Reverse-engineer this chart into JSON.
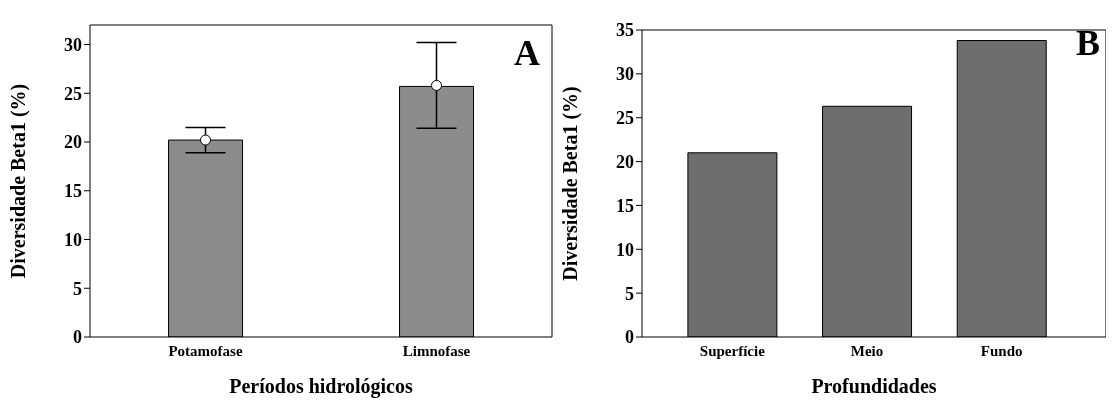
{
  "chart_data": [
    {
      "type": "bar",
      "xlabel": "Períodos hidrológicos",
      "ylabel": "Diversidade Beta1 (%)",
      "annotations": [
        "A"
      ],
      "categories": [
        "Potamofase",
        "Limnofase"
      ],
      "series": [
        {
          "color": "#8c8c8c",
          "values": [
            20.2,
            25.7
          ]
        },
        {
          "type": "scatter",
          "color": "#ffffff",
          "marker": "circle",
          "x": [
            "Potamofase",
            "Limnofase"
          ],
          "values": [
            20.2,
            25.8
          ],
          "errors": [
            [
              18.9,
              21.5
            ],
            [
              21.4,
              30.2
            ]
          ]
        }
      ],
      "ylim": [
        0,
        32
      ],
      "yticks": [
        0,
        5,
        10,
        15,
        20,
        25,
        30
      ],
      "grid": false,
      "legend": false
    },
    {
      "type": "bar",
      "xlabel": "Profundidades",
      "ylabel": "Diversidade Beta1 (%)",
      "annotations": [
        "B"
      ],
      "categories": [
        "Superfície",
        "Meio",
        "Fundo"
      ],
      "series": [
        {
          "color": "#6e6e6e",
          "values": [
            21.0,
            26.3,
            33.8
          ]
        }
      ],
      "ylim": [
        0,
        35
      ],
      "yticks": [
        0,
        5,
        10,
        15,
        20,
        25,
        30,
        35
      ],
      "grid": false,
      "legend": false
    }
  ]
}
